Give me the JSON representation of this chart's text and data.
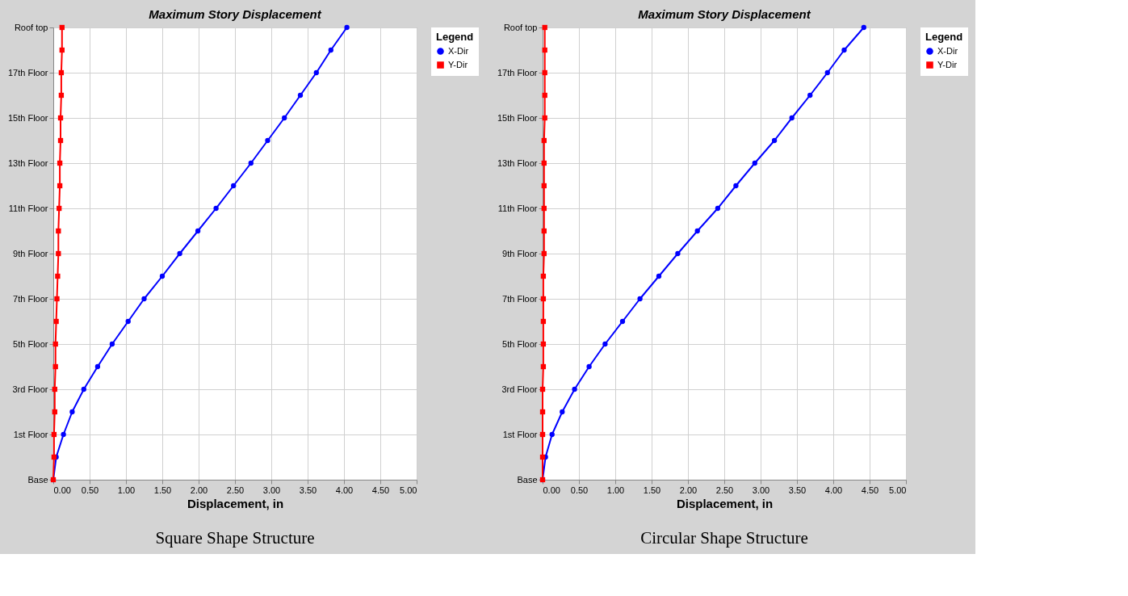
{
  "chart_data": [
    {
      "type": "line",
      "title": "Maximum Story Displacement",
      "xlabel": "Displacement, in",
      "legend_title": "Legend",
      "orientation": "horizontal",
      "categories": [
        "Roof top",
        null,
        "17th Floor",
        null,
        "15th Floor",
        null,
        "13th Floor",
        null,
        "11th Floor",
        null,
        "9th Floor",
        null,
        "7th Floor",
        null,
        "5th Floor",
        null,
        "3rd Floor",
        null,
        "1st Floor",
        null,
        "Base"
      ],
      "xlim": [
        0,
        5
      ],
      "xticks": [
        {
          "value": 0,
          "label": "0.00"
        },
        {
          "value": 0.5,
          "label": "0.50"
        },
        {
          "value": 1,
          "label": "1.00"
        },
        {
          "value": 1.5,
          "label": "1.50"
        },
        {
          "value": 2,
          "label": "2.00"
        },
        {
          "value": 2.5,
          "label": "2.50"
        },
        {
          "value": 3,
          "label": "3.00"
        },
        {
          "value": 3.5,
          "label": "3.50"
        },
        {
          "value": 4,
          "label": "4.00"
        },
        {
          "value": 4.5,
          "label": "4.50"
        },
        {
          "value": 5,
          "label": "5.00"
        }
      ],
      "grid": true,
      "legend": "top right",
      "series": [
        {
          "name": "X-Dir",
          "color": "#0000ff",
          "marker": "circle",
          "values": [
            4.04,
            3.82,
            3.62,
            3.4,
            3.18,
            2.95,
            2.72,
            2.48,
            2.24,
            1.99,
            1.74,
            1.5,
            1.25,
            1.03,
            0.81,
            0.61,
            0.42,
            0.26,
            0.14,
            0.04,
            0
          ]
        },
        {
          "name": "Y-Dir",
          "color": "#ff0000",
          "marker": "square",
          "values": [
            0.12,
            0.12,
            0.11,
            0.11,
            0.1,
            0.1,
            0.09,
            0.09,
            0.08,
            0.07,
            0.07,
            0.06,
            0.05,
            0.04,
            0.03,
            0.03,
            0.02,
            0.02,
            0.01,
            0.01,
            0
          ]
        }
      ],
      "annotations": [
        "Square Shape Structure"
      ]
    },
    {
      "type": "line",
      "title": "Maximum Story Displacement",
      "xlabel": "Displacement, in",
      "legend_title": "Legend",
      "orientation": "horizontal",
      "categories": [
        "Roof top",
        null,
        "17th Floor",
        null,
        "15th Floor",
        null,
        "13th Floor",
        null,
        "11th Floor",
        null,
        "9th Floor",
        null,
        "7th Floor",
        null,
        "5th Floor",
        null,
        "3rd Floor",
        null,
        "1st Floor",
        null,
        "Base"
      ],
      "xlim": [
        0,
        5
      ],
      "xticks": [
        {
          "value": 0,
          "label": "0.00"
        },
        {
          "value": 0.5,
          "label": "0.50"
        },
        {
          "value": 1,
          "label": "1.00"
        },
        {
          "value": 1.5,
          "label": "1.50"
        },
        {
          "value": 2,
          "label": "2.00"
        },
        {
          "value": 2.5,
          "label": "2.50"
        },
        {
          "value": 3,
          "label": "3.00"
        },
        {
          "value": 3.5,
          "label": "3.50"
        },
        {
          "value": 4,
          "label": "4.00"
        },
        {
          "value": 4.5,
          "label": "4.50"
        },
        {
          "value": 5,
          "label": "5.00"
        }
      ],
      "grid": true,
      "legend": "top right",
      "series": [
        {
          "name": "X-Dir",
          "color": "#0000ff",
          "marker": "circle",
          "values": [
            4.42,
            4.15,
            3.92,
            3.68,
            3.43,
            3.19,
            2.92,
            2.66,
            2.41,
            2.13,
            1.86,
            1.6,
            1.34,
            1.1,
            0.86,
            0.64,
            0.44,
            0.27,
            0.13,
            0.04,
            0
          ]
        },
        {
          "name": "Y-Dir",
          "color": "#ff0000",
          "marker": "square",
          "values": [
            0.03,
            0.03,
            0.03,
            0.03,
            0.03,
            0.02,
            0.02,
            0.02,
            0.02,
            0.02,
            0.02,
            0.01,
            0.01,
            0.01,
            0.01,
            0.01,
            0,
            0,
            0,
            0,
            0
          ]
        }
      ],
      "annotations": [
        "Circular Shape Structure"
      ]
    }
  ]
}
